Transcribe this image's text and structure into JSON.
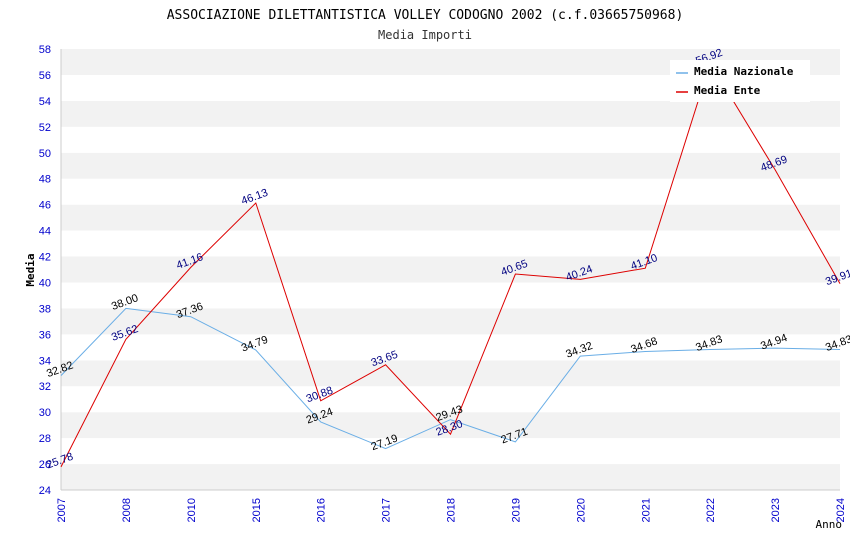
{
  "chart_data": {
    "type": "line",
    "title": "ASSOCIAZIONE DILETTANTISTICA VOLLEY CODOGNO 2002 (c.f.03665750968)",
    "subtitle": "Media Importi",
    "xlabel": "Anno",
    "ylabel": "Media",
    "ylim": [
      24,
      58
    ],
    "ytick_step": 2,
    "categories": [
      "2007",
      "2008",
      "2010",
      "2015",
      "2016",
      "2017",
      "2018",
      "2019",
      "2020",
      "2021",
      "2022",
      "2023",
      "2024"
    ],
    "series": [
      {
        "name": "Media Nazionale",
        "color": "#6aaee6",
        "label_color": "#000000",
        "values": [
          32.82,
          38.0,
          37.36,
          34.79,
          29.24,
          27.19,
          29.43,
          27.71,
          34.32,
          34.68,
          34.83,
          34.94,
          34.83
        ],
        "labels": [
          "32.82",
          "38.00",
          "37.36",
          "34.79",
          "29.24",
          "27.19",
          "29.43",
          "27.71",
          "34.32",
          "34.68",
          "34.83",
          "34.94",
          "34.83"
        ]
      },
      {
        "name": "Media Ente",
        "color": "#dd0000",
        "label_color": "#000080",
        "values": [
          25.78,
          35.62,
          41.16,
          46.13,
          30.88,
          33.65,
          28.3,
          40.65,
          40.24,
          41.1,
          56.92,
          48.69,
          39.91
        ],
        "labels": [
          "25.78",
          "35.62",
          "41.16",
          "46.13",
          "30.88",
          "33.65",
          "28.30",
          "40.65",
          "40.24",
          "41.10",
          "56.92",
          "48.69",
          "39.91"
        ]
      }
    ],
    "legend": "top-right",
    "grid": "alternating horizontal bands",
    "axis_label_color": "#0000cc"
  }
}
